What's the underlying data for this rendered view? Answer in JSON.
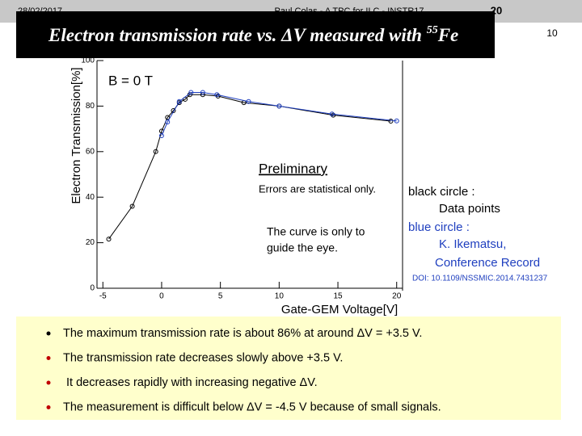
{
  "slide": {
    "date": "28/02/2017",
    "footer": "Paul Colas - A TPC for ILC - INSTR17",
    "page": "20",
    "corner_number": "10",
    "title_parts": [
      "Electron transmission rate vs. ΔV measured with ",
      "55",
      "Fe"
    ],
    "bullets": [
      "The maximum transmission  rate is about 86% at around ΔV = +3.5 V.",
      "The transmission rate decreases slowly above +3.5 V.",
      "It decreases rapidly with increasing negative ΔV.",
      "The measurement is difficult below ΔV = -4.5 V because of small signals."
    ]
  },
  "chart_data": {
    "type": "line",
    "x_label": "Gate-GEM Voltage[V]",
    "y_label": "Electron Transmission[%]",
    "xlim": [
      -5.5,
      20.5
    ],
    "ylim": [
      0,
      100
    ],
    "xticks": [
      -5,
      0,
      5,
      10,
      15,
      20
    ],
    "yticks": [
      0,
      20,
      40,
      60,
      80,
      100
    ],
    "annotations": [
      "B = 0 T",
      "Preliminary",
      "Errors are statistical only.",
      "The curve is only to",
      "guide the eye.",
      "Data points",
      "K. Ikematsu,",
      "Conference Record",
      "DOI: 10.1109/NSSMIC.2014.7431237"
    ],
    "series": [
      {
        "name": "black circle :",
        "color": "#000000",
        "x": [
          -4.5,
          -2.5,
          -0.5,
          0,
          0.5,
          1,
          1.5,
          2,
          2.4,
          3.5,
          4.8,
          7,
          10,
          14.6,
          19.5
        ],
        "values": [
          21.6,
          36,
          60,
          69,
          75,
          78,
          81.5,
          83,
          85,
          85,
          84.4,
          81.5,
          80,
          76,
          73.4
        ]
      },
      {
        "name": "blue circle :",
        "color": "#1f3fbf",
        "x": [
          0,
          0.5,
          1.5,
          2.5,
          3.5,
          4.7,
          7.4,
          10,
          14.5,
          20
        ],
        "values": [
          67,
          73,
          82,
          86,
          86,
          85,
          82,
          80,
          76.5,
          73.5
        ]
      }
    ]
  }
}
